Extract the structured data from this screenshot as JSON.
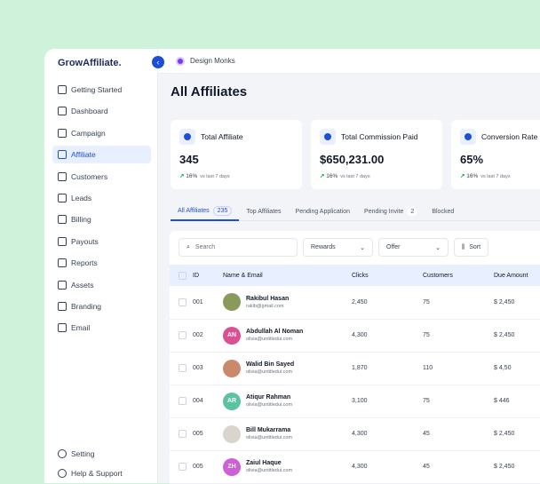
{
  "sidebar": {
    "logo": "GrowAffiliate.",
    "items": [
      {
        "label": "Getting Started",
        "icon": "rocket-icon"
      },
      {
        "label": "Dashboard",
        "icon": "grid-icon"
      },
      {
        "label": "Campaign",
        "icon": "award-icon"
      },
      {
        "label": "Affiliate",
        "icon": "user-icon",
        "active": true
      },
      {
        "label": "Customers",
        "icon": "users-icon"
      },
      {
        "label": "Leads",
        "icon": "people-icon"
      },
      {
        "label": "Billing",
        "icon": "card-icon"
      },
      {
        "label": "Payouts",
        "icon": "wallet-icon"
      },
      {
        "label": "Reports",
        "icon": "chart-icon"
      },
      {
        "label": "Assets",
        "icon": "layers-icon"
      },
      {
        "label": "Branding",
        "icon": "image-icon"
      },
      {
        "label": "Email",
        "icon": "mail-icon"
      }
    ],
    "bottom": [
      {
        "label": "Setting",
        "icon": "gear-icon"
      },
      {
        "label": "Help & Support",
        "icon": "help-icon"
      }
    ]
  },
  "topbar": {
    "workspace": "Design Monks"
  },
  "page": {
    "title": "All Affiliates"
  },
  "stats": [
    {
      "label": "Total Affiliate",
      "value": "345",
      "trend": "16%",
      "period": "vs last 7 days"
    },
    {
      "label": "Total Commission Paid",
      "value": "$650,231.00",
      "trend": "16%",
      "period": "vs last 7 days"
    },
    {
      "label": "Conversion Rate",
      "value": "65%",
      "trend": "16%",
      "period": "vs last 7 days"
    }
  ],
  "tabs": [
    {
      "label": "All Affiliates",
      "count": "235",
      "active": true
    },
    {
      "label": "Top Affiliates"
    },
    {
      "label": "Pending Application"
    },
    {
      "label": "Pending Invite",
      "count": "2"
    },
    {
      "label": "Blocked"
    }
  ],
  "filters": {
    "search_placeholder": "Search",
    "rewards": "Rewards",
    "offer": "Offer",
    "sort": "Sort"
  },
  "table": {
    "headers": [
      "ID",
      "Name & Email",
      "Clicks",
      "Customers",
      "Due Amount"
    ],
    "rows": [
      {
        "id": "001",
        "name": "Rakibul Hasan",
        "email": "rakib@gmail.com",
        "clicks": "2,450",
        "customers": "75",
        "due": "$ 2,450",
        "initials": "",
        "color": "#8a9a5b"
      },
      {
        "id": "002",
        "name": "Abdullah Al Noman",
        "email": "olivia@untitledui.com",
        "clicks": "4,300",
        "customers": "75",
        "due": "$ 2,450",
        "initials": "AN",
        "color": "#dd4f93"
      },
      {
        "id": "003",
        "name": "Walid Bin Sayed",
        "email": "olivia@untitledui.com",
        "clicks": "1,870",
        "customers": "110",
        "due": "$ 4,50",
        "initials": "",
        "color": "#c9896a"
      },
      {
        "id": "004",
        "name": "Atiqur Rahman",
        "email": "olivia@untitledui.com",
        "clicks": "3,100",
        "customers": "75",
        "due": "$ 446",
        "initials": "AR",
        "color": "#5cc2a4"
      },
      {
        "id": "005",
        "name": "Bill Mukarrama",
        "email": "olivia@untitledui.com",
        "clicks": "4,300",
        "customers": "45",
        "due": "$ 2,450",
        "initials": "",
        "color": "#d9d4cc"
      },
      {
        "id": "005",
        "name": "Zaiul Haque",
        "email": "olivia@untitledui.com",
        "clicks": "4,300",
        "customers": "45",
        "due": "$ 2,450",
        "initials": "ZH",
        "color": "#cf5fd6"
      }
    ]
  }
}
